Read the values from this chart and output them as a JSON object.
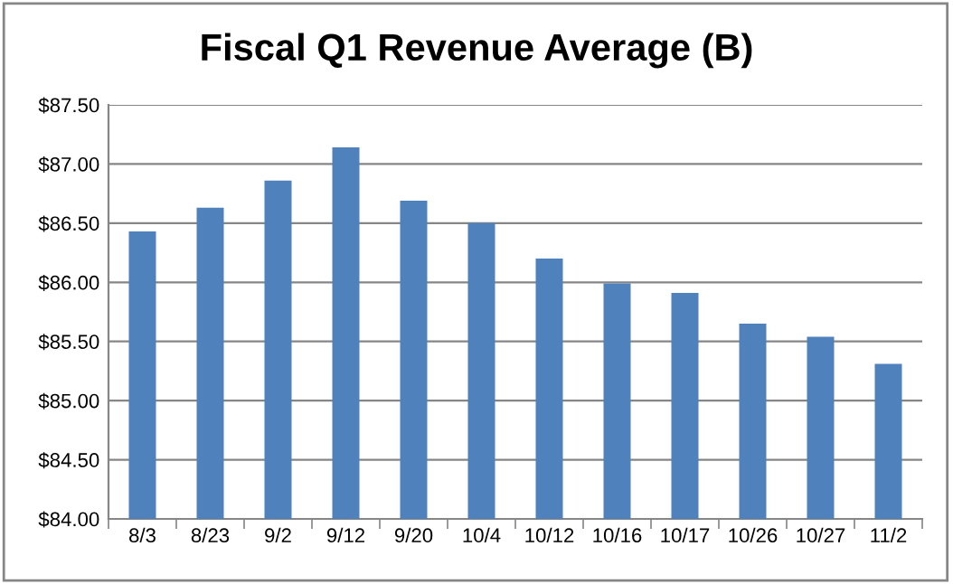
{
  "chart_data": {
    "type": "bar",
    "title": "Fiscal Q1 Revenue Average (B)",
    "categories": [
      "8/3",
      "8/23",
      "9/2",
      "9/12",
      "9/20",
      "10/4",
      "10/12",
      "10/16",
      "10/17",
      "10/26",
      "10/27",
      "11/2"
    ],
    "values": [
      86.43,
      86.63,
      86.86,
      87.14,
      86.69,
      86.5,
      86.2,
      85.99,
      85.91,
      85.65,
      85.54,
      85.31
    ],
    "color": "#4f81bd",
    "ylim": [
      84,
      87.5
    ],
    "yticks": [
      {
        "value": 84,
        "label": "$84.00"
      },
      {
        "value": 84.5,
        "label": "$84.50"
      },
      {
        "value": 85,
        "label": "$85.00"
      },
      {
        "value": 85.5,
        "label": "$85.50"
      },
      {
        "value": 86,
        "label": "$86.00"
      },
      {
        "value": 86.5,
        "label": "$86.50"
      },
      {
        "value": 87,
        "label": "$87.00"
      },
      {
        "value": 87.5,
        "label": "$87.50"
      }
    ],
    "grid": "y"
  }
}
